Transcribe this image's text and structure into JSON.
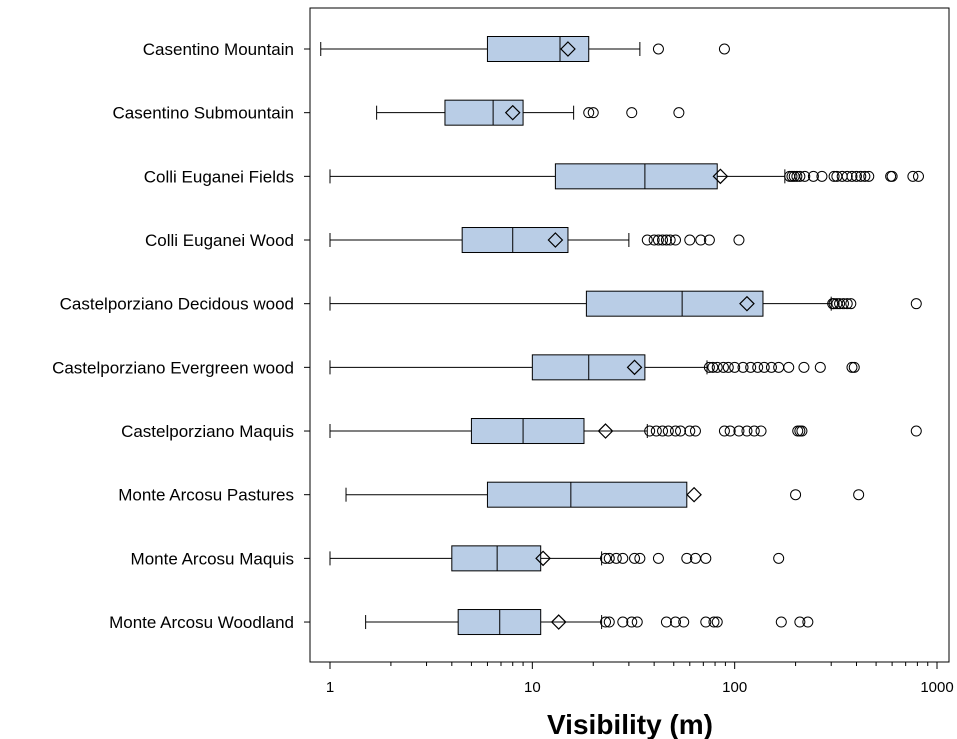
{
  "chart_data": {
    "type": "boxplot",
    "title": "",
    "xlabel": "Visibility (m)",
    "ylabel": "",
    "x_scale": "log",
    "xlim": [
      0.8,
      1000
    ],
    "xticks": [
      1,
      10,
      100,
      1000
    ],
    "xtick_labels": [
      "1",
      "10",
      "100",
      "1000"
    ],
    "grid": false,
    "legend": "none",
    "box_fill": "#b9cde6",
    "stroke": "#000000",
    "categories": [
      "Casentino Mountain",
      "Casentino Submountain",
      "Colli Euganei Fields",
      "Colli Euganei Wood",
      "Castelporziano Decidous wood",
      "Castelporziano Evergreen wood",
      "Castelporziano Maquis",
      "Monte Arcosu Pastures",
      "Monte Arcosu Maquis",
      "Monte Arcosu Woodland"
    ],
    "boxes": [
      {
        "whisker_low": 0.9,
        "q1": 6,
        "median": 13.7,
        "q3": 19,
        "whisker_high": 34,
        "mean": 15,
        "outliers": [
          42,
          89
        ]
      },
      {
        "whisker_low": 1.7,
        "q1": 3.7,
        "median": 6.4,
        "q3": 9,
        "whisker_high": 16,
        "mean": 8,
        "outliers": [
          19,
          20,
          31,
          53
        ]
      },
      {
        "whisker_low": 1,
        "q1": 13,
        "median": 36,
        "q3": 82,
        "whisker_high": 177,
        "mean": 85,
        "outliers": [
          187,
          192,
          197,
          203,
          210,
          222,
          245,
          270,
          310,
          320,
          340,
          360,
          380,
          400,
          420,
          440,
          460,
          590,
          600,
          760,
          810
        ]
      },
      {
        "whisker_low": 1,
        "q1": 4.5,
        "median": 8,
        "q3": 15,
        "whisker_high": 30,
        "mean": 13,
        "outliers": [
          37,
          40,
          42,
          44,
          46,
          48,
          51,
          60,
          68,
          75,
          105
        ]
      },
      {
        "whisker_low": 1,
        "q1": 18.5,
        "median": 55,
        "q3": 138,
        "whisker_high": 300,
        "mean": 115,
        "outliers": [
          305,
          310,
          320,
          330,
          345,
          360,
          375,
          790
        ]
      },
      {
        "whisker_low": 1,
        "q1": 10,
        "median": 19,
        "q3": 36,
        "whisker_high": 73,
        "mean": 32,
        "outliers": [
          75,
          78,
          82,
          88,
          93,
          100,
          110,
          120,
          130,
          140,
          152,
          165,
          185,
          220,
          265,
          380,
          390
        ]
      },
      {
        "whisker_low": 1,
        "q1": 5,
        "median": 9,
        "q3": 18,
        "whisker_high": 37,
        "mean": 23,
        "outliers": [
          38,
          41,
          44,
          47,
          51,
          54,
          60,
          64,
          89,
          95,
          105,
          115,
          125,
          135,
          205,
          210,
          215,
          790
        ]
      },
      {
        "whisker_low": 1.2,
        "q1": 6,
        "median": 15.5,
        "q3": 58,
        "whisker_high": 58,
        "mean": 63,
        "outliers": [
          200,
          410
        ]
      },
      {
        "whisker_low": 1,
        "q1": 4,
        "median": 6.7,
        "q3": 11,
        "whisker_high": 22,
        "mean": 11.3,
        "outliers": [
          23,
          24,
          26,
          28,
          32,
          34,
          42,
          58,
          64,
          72,
          165
        ]
      },
      {
        "whisker_low": 1.5,
        "q1": 4.3,
        "median": 6.9,
        "q3": 11,
        "whisker_high": 22,
        "mean": 13.5,
        "outliers": [
          23,
          24,
          28,
          31,
          33,
          46,
          51,
          56,
          72,
          79,
          82,
          170,
          210,
          230
        ]
      }
    ]
  }
}
